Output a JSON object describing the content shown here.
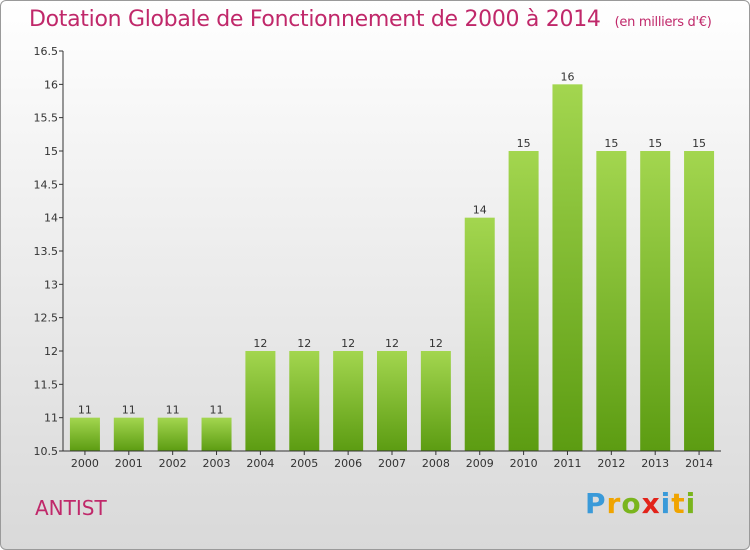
{
  "header": {
    "title": "Dotation Globale de Fonctionnement de 2000 à 2014",
    "unit": "(en milliers d'€)"
  },
  "footer": {
    "commune": "ANTIST",
    "logo": "Proxiti"
  },
  "colors": {
    "title": "#c0286a",
    "bar_light": "#9fd44a",
    "bar_dark": "#5e9e14",
    "axis": "#333333"
  },
  "chart_data": {
    "type": "bar",
    "categories": [
      "2000",
      "2001",
      "2002",
      "2003",
      "2004",
      "2005",
      "2006",
      "2007",
      "2008",
      "2009",
      "2010",
      "2011",
      "2012",
      "2013",
      "2014"
    ],
    "values": [
      11,
      11,
      11,
      11,
      12,
      12,
      12,
      12,
      12,
      14,
      15,
      16,
      15,
      15,
      15
    ],
    "data_labels": [
      "11",
      "11",
      "11",
      "11",
      "12",
      "12",
      "12",
      "12",
      "12",
      "14",
      "15",
      "16",
      "15",
      "15",
      "15"
    ],
    "ylim": [
      10.5,
      16.5
    ],
    "yticks": [
      10.5,
      11,
      11.5,
      12,
      12.5,
      13,
      13.5,
      14,
      14.5,
      15,
      15.5,
      16,
      16.5
    ],
    "ytick_labels": [
      "10.5",
      "11",
      "11.5",
      "12",
      "12.5",
      "13",
      "13.5",
      "14",
      "14.5",
      "15",
      "15.5",
      "16",
      "16.5"
    ],
    "grid": false,
    "legend": "none"
  }
}
